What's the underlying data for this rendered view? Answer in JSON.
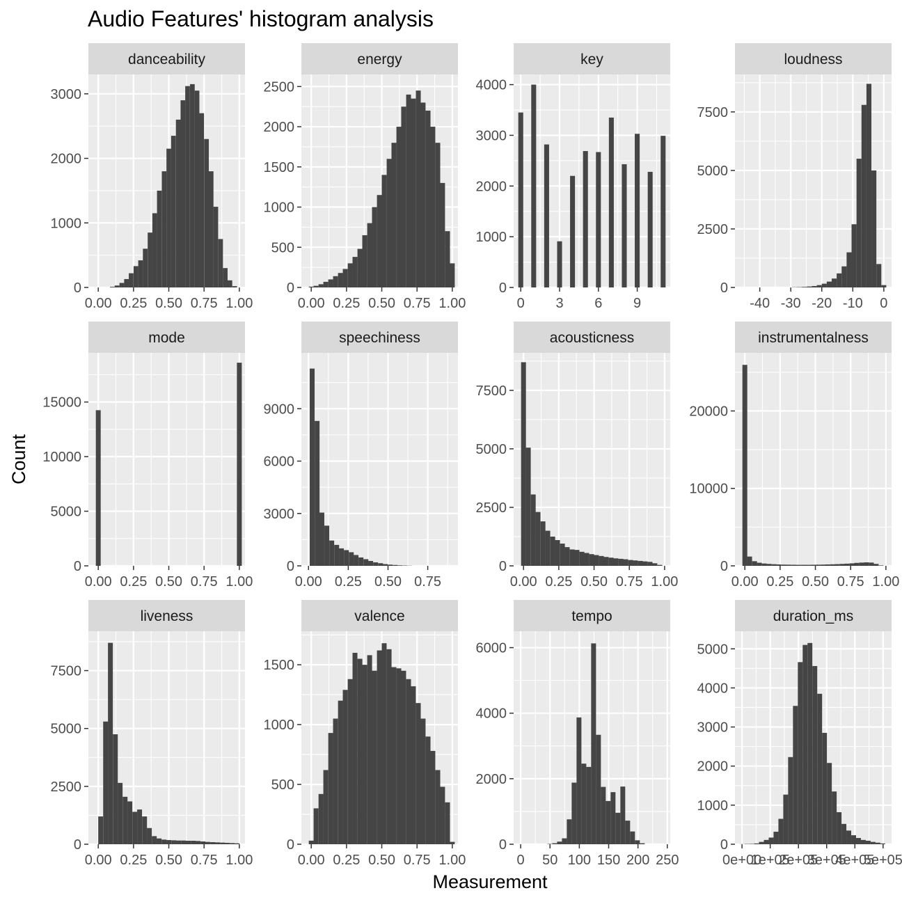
{
  "chart_data": {
    "type": "bar",
    "title": "Audio Features' histogram analysis",
    "xlabel": "Measurement",
    "ylabel": "Count",
    "grid": true,
    "colors": {
      "bar": "#454545",
      "panel_bg": "#ebebeb",
      "grid": "#ffffff",
      "strip_bg": "#d9d9d9",
      "tick": "#4d4d4d"
    },
    "facets": [
      {
        "name": "danceability",
        "xlim": [
          -0.07,
          1.04
        ],
        "ylim": [
          0,
          3300
        ],
        "xticks": [
          0,
          0.25,
          0.5,
          0.75,
          1
        ],
        "xtick_labels": [
          "0.00",
          "0.25",
          "0.50",
          "0.75",
          "1.00"
        ],
        "yticks": [
          0,
          1000,
          2000,
          3000
        ],
        "ytick_labels": [
          "0",
          "1000",
          "2000",
          "3000"
        ],
        "bin_width": 0.0333,
        "bins": [
          0.1,
          0.133,
          0.167,
          0.2,
          0.233,
          0.267,
          0.3,
          0.333,
          0.367,
          0.4,
          0.433,
          0.467,
          0.5,
          0.533,
          0.567,
          0.6,
          0.633,
          0.667,
          0.7,
          0.733,
          0.767,
          0.8,
          0.833,
          0.867,
          0.9,
          0.933,
          0.967
        ],
        "counts": [
          10,
          30,
          70,
          130,
          220,
          330,
          420,
          600,
          850,
          1150,
          1500,
          1800,
          2150,
          2350,
          2600,
          2900,
          3120,
          3150,
          3050,
          2700,
          2300,
          1800,
          1250,
          750,
          300,
          110,
          20
        ]
      },
      {
        "name": "energy",
        "xlim": [
          -0.07,
          1.04
        ],
        "ylim": [
          0,
          2650
        ],
        "xticks": [
          0,
          0.25,
          0.5,
          0.75,
          1
        ],
        "xtick_labels": [
          "0.00",
          "0.25",
          "0.50",
          "0.75",
          "1.00"
        ],
        "yticks": [
          0,
          500,
          1000,
          1500,
          2000,
          2500
        ],
        "ytick_labels": [
          "0",
          "500",
          "1000",
          "1500",
          "2000",
          "2500"
        ],
        "bin_width": 0.0345,
        "bins": [
          0.0,
          0.034,
          0.069,
          0.103,
          0.138,
          0.172,
          0.207,
          0.241,
          0.276,
          0.31,
          0.345,
          0.379,
          0.414,
          0.448,
          0.483,
          0.517,
          0.552,
          0.586,
          0.621,
          0.655,
          0.69,
          0.724,
          0.759,
          0.793,
          0.828,
          0.862,
          0.897,
          0.931,
          0.966,
          1.0
        ],
        "counts": [
          10,
          20,
          40,
          70,
          100,
          140,
          180,
          230,
          300,
          380,
          480,
          650,
          800,
          1000,
          1150,
          1400,
          1600,
          1800,
          2000,
          2250,
          2400,
          2350,
          2450,
          2300,
          2200,
          2000,
          1800,
          1300,
          700,
          300
        ]
      },
      {
        "name": "key",
        "xlim": [
          -0.55,
          11.55
        ],
        "ylim": [
          0,
          4200
        ],
        "xticks": [
          0,
          3,
          6,
          9
        ],
        "xtick_labels": [
          "0",
          "3",
          "6",
          "9"
        ],
        "yticks": [
          0,
          1000,
          2000,
          3000,
          4000
        ],
        "ytick_labels": [
          "0",
          "1000",
          "2000",
          "3000",
          "4000"
        ],
        "bin_width": 0.38,
        "bins": [
          0,
          1,
          2,
          3,
          4,
          5,
          6,
          7,
          8,
          9,
          10,
          11
        ],
        "counts": [
          3450,
          4000,
          2820,
          910,
          2200,
          2690,
          2670,
          3350,
          2430,
          3030,
          2280,
          2990
        ]
      },
      {
        "name": "loudness",
        "xlim": [
          -48,
          2.5
        ],
        "ylim": [
          0,
          9100
        ],
        "xticks": [
          -40,
          -30,
          -20,
          -10,
          0
        ],
        "xtick_labels": [
          "-40",
          "-30",
          "-20",
          "-10",
          "0"
        ],
        "yticks": [
          0,
          2500,
          5000,
          7500
        ],
        "ytick_labels": [
          "0",
          "2500",
          "5000",
          "7500"
        ],
        "bin_width": 1.6,
        "bins": [
          -28.8,
          -27.2,
          -25.6,
          -24.0,
          -22.4,
          -20.8,
          -19.2,
          -17.6,
          -16.0,
          -14.4,
          -12.8,
          -11.2,
          -9.6,
          -8.0,
          -6.4,
          -4.8,
          -3.2,
          -1.6,
          0.0
        ],
        "counts": [
          10,
          15,
          25,
          40,
          60,
          100,
          160,
          250,
          380,
          600,
          900,
          1500,
          2700,
          5500,
          7800,
          8700,
          5000,
          1000,
          100
        ]
      },
      {
        "name": "mode",
        "xlim": [
          -0.07,
          1.04
        ],
        "ylim": [
          0,
          19500
        ],
        "xticks": [
          0,
          0.25,
          0.5,
          0.75,
          1
        ],
        "xtick_labels": [
          "0.00",
          "0.25",
          "0.50",
          "0.75",
          "1.00"
        ],
        "yticks": [
          0,
          5000,
          10000,
          15000
        ],
        "ytick_labels": [
          "0",
          "5000",
          "10000",
          "15000"
        ],
        "bin_width": 0.0345,
        "bins": [
          0,
          1
        ],
        "counts": [
          14250,
          18600
        ]
      },
      {
        "name": "speechiness",
        "xlim": [
          -0.045,
          0.94
        ],
        "ylim": [
          0,
          12200
        ],
        "xticks": [
          0,
          0.25,
          0.5,
          0.75
        ],
        "xtick_labels": [
          "0.00",
          "0.25",
          "0.50",
          "0.75"
        ],
        "yticks": [
          0,
          3000,
          6000,
          9000
        ],
        "ytick_labels": [
          "0",
          "3000",
          "6000",
          "9000"
        ],
        "bin_width": 0.0307,
        "bins": [
          0.023,
          0.054,
          0.084,
          0.115,
          0.146,
          0.177,
          0.207,
          0.238,
          0.269,
          0.299,
          0.33,
          0.361,
          0.391,
          0.422,
          0.453,
          0.483,
          0.514,
          0.545,
          0.575,
          0.606,
          0.637
        ],
        "counts": [
          11300,
          8300,
          3050,
          2300,
          1450,
          1200,
          1000,
          900,
          780,
          620,
          480,
          380,
          280,
          200,
          150,
          100,
          70,
          50,
          30,
          20,
          10
        ]
      },
      {
        "name": "acousticness",
        "xlim": [
          -0.07,
          1.04
        ],
        "ylim": [
          0,
          9100
        ],
        "xticks": [
          0,
          0.25,
          0.5,
          0.75,
          1
        ],
        "xtick_labels": [
          "0.00",
          "0.25",
          "0.50",
          "0.75",
          "1.00"
        ],
        "yticks": [
          0,
          2500,
          5000,
          7500
        ],
        "ytick_labels": [
          "0",
          "2500",
          "5000",
          "7500"
        ],
        "bin_width": 0.0345,
        "bins": [
          0.0,
          0.034,
          0.069,
          0.103,
          0.138,
          0.172,
          0.207,
          0.241,
          0.276,
          0.31,
          0.345,
          0.379,
          0.414,
          0.448,
          0.483,
          0.517,
          0.552,
          0.586,
          0.621,
          0.655,
          0.69,
          0.724,
          0.759,
          0.793,
          0.828,
          0.862,
          0.897,
          0.931,
          0.966
        ],
        "counts": [
          8700,
          5050,
          3050,
          2300,
          1900,
          1500,
          1250,
          1100,
          950,
          800,
          700,
          680,
          600,
          550,
          500,
          460,
          420,
          380,
          350,
          320,
          300,
          280,
          250,
          230,
          210,
          190,
          170,
          110,
          40
        ]
      },
      {
        "name": "instrumentalness",
        "xlim": [
          -0.07,
          1.04
        ],
        "ylim": [
          0,
          27500
        ],
        "xticks": [
          0,
          0.25,
          0.5,
          0.75,
          1
        ],
        "xtick_labels": [
          "0.00",
          "0.25",
          "0.50",
          "0.75",
          "1.00"
        ],
        "yticks": [
          0,
          10000,
          20000
        ],
        "ytick_labels": [
          "0",
          "10000",
          "20000"
        ],
        "bin_width": 0.0345,
        "bins": [
          0.0,
          0.034,
          0.069,
          0.103,
          0.138,
          0.172,
          0.207,
          0.241,
          0.276,
          0.31,
          0.345,
          0.379,
          0.414,
          0.448,
          0.483,
          0.517,
          0.552,
          0.586,
          0.621,
          0.655,
          0.69,
          0.724,
          0.759,
          0.793,
          0.828,
          0.862,
          0.897,
          0.931,
          0.966
        ],
        "counts": [
          25950,
          1200,
          600,
          400,
          300,
          250,
          210,
          180,
          160,
          150,
          140,
          130,
          130,
          130,
          140,
          150,
          160,
          180,
          200,
          220,
          250,
          280,
          320,
          380,
          420,
          450,
          420,
          250,
          60
        ]
      },
      {
        "name": "liveness",
        "xlim": [
          -0.07,
          1.04
        ],
        "ylim": [
          0,
          9200
        ],
        "xticks": [
          0,
          0.25,
          0.5,
          0.75,
          1
        ],
        "xtick_labels": [
          "0.00",
          "0.25",
          "0.50",
          "0.75",
          "1.00"
        ],
        "yticks": [
          0,
          2500,
          5000,
          7500
        ],
        "ytick_labels": [
          "0",
          "2500",
          "5000",
          "7500"
        ],
        "bin_width": 0.0345,
        "bins": [
          0.017,
          0.052,
          0.086,
          0.121,
          0.155,
          0.19,
          0.224,
          0.259,
          0.293,
          0.328,
          0.362,
          0.397,
          0.431,
          0.466,
          0.5,
          0.535,
          0.569,
          0.604,
          0.638,
          0.673,
          0.707,
          0.742,
          0.776,
          0.811,
          0.845,
          0.88,
          0.914,
          0.949,
          0.983
        ],
        "counts": [
          1200,
          5300,
          8700,
          4750,
          2650,
          2050,
          1850,
          1400,
          1500,
          1200,
          700,
          350,
          250,
          200,
          180,
          170,
          160,
          160,
          150,
          150,
          140,
          120,
          100,
          90,
          80,
          70,
          60,
          50,
          40
        ]
      },
      {
        "name": "valence",
        "xlim": [
          -0.07,
          1.04
        ],
        "ylim": [
          0,
          1780
        ],
        "xticks": [
          0,
          0.25,
          0.5,
          0.75,
          1
        ],
        "xtick_labels": [
          "0.00",
          "0.25",
          "0.50",
          "0.75",
          "1.00"
        ],
        "yticks": [
          0,
          500,
          1000,
          1500
        ],
        "ytick_labels": [
          "0",
          "500",
          "1000",
          "1500"
        ],
        "bin_width": 0.0345,
        "bins": [
          0.0,
          0.034,
          0.069,
          0.103,
          0.138,
          0.172,
          0.207,
          0.241,
          0.276,
          0.31,
          0.345,
          0.379,
          0.414,
          0.448,
          0.483,
          0.517,
          0.552,
          0.586,
          0.621,
          0.655,
          0.69,
          0.724,
          0.759,
          0.793,
          0.828,
          0.862,
          0.897,
          0.931,
          0.966,
          1.0
        ],
        "counts": [
          30,
          300,
          420,
          620,
          930,
          1050,
          1200,
          1290,
          1380,
          1600,
          1550,
          1500,
          1580,
          1450,
          1620,
          1680,
          1630,
          1480,
          1470,
          1450,
          1380,
          1320,
          1180,
          1050,
          900,
          780,
          620,
          480,
          350,
          20
        ]
      },
      {
        "name": "tempo",
        "xlim": [
          -12,
          255
        ],
        "ylim": [
          0,
          6500
        ],
        "xticks": [
          0,
          50,
          100,
          150,
          200,
          250
        ],
        "xtick_labels": [
          "0",
          "50",
          "100",
          "150",
          "200",
          "250"
        ],
        "yticks": [
          0,
          2000,
          4000,
          6000
        ],
        "ytick_labels": [
          "0",
          "2000",
          "4000",
          "6000"
        ],
        "bin_width": 8.3,
        "bins": [
          49.6,
          57.9,
          66.2,
          74.5,
          82.8,
          91.1,
          99.4,
          107.7,
          116.0,
          124.3,
          132.6,
          140.9,
          149.2,
          157.5,
          165.8,
          174.1,
          182.4,
          190.7,
          199.0,
          207.3
        ],
        "counts": [
          10,
          30,
          80,
          180,
          760,
          1880,
          3870,
          2460,
          2360,
          6130,
          3340,
          1750,
          1320,
          1590,
          960,
          1760,
          720,
          390,
          120,
          30
        ]
      },
      {
        "name": "duration_ms",
        "xlim": [
          -25000,
          530000
        ],
        "ylim": [
          0,
          5450
        ],
        "xticks": [
          0,
          100000,
          200000,
          300000,
          400000,
          500000
        ],
        "xtick_labels": [
          "0e+00",
          "1e+05",
          "2e+05",
          "3e+05",
          "4e+05",
          "5e+05"
        ],
        "yticks": [
          0,
          1000,
          2000,
          3000,
          4000,
          5000
        ],
        "ytick_labels": [
          "0",
          "1000",
          "2000",
          "3000",
          "4000",
          "5000"
        ],
        "bin_width": 17200,
        "bins": [
          0,
          17200,
          34400,
          51600,
          68800,
          86000,
          103200,
          120400,
          137600,
          154800,
          172000,
          189200,
          206400,
          223600,
          240800,
          258000,
          275200,
          292400,
          309600,
          326800,
          344000,
          361200,
          378400,
          395600,
          412800,
          430000,
          447200,
          464400,
          481600,
          498800
        ],
        "counts": [
          3,
          8,
          10,
          20,
          60,
          110,
          170,
          320,
          650,
          1270,
          2230,
          3540,
          4660,
          5100,
          5150,
          4560,
          3850,
          2850,
          2080,
          1350,
          820,
          520,
          350,
          230,
          160,
          110,
          90,
          60,
          40,
          20
        ]
      }
    ]
  }
}
